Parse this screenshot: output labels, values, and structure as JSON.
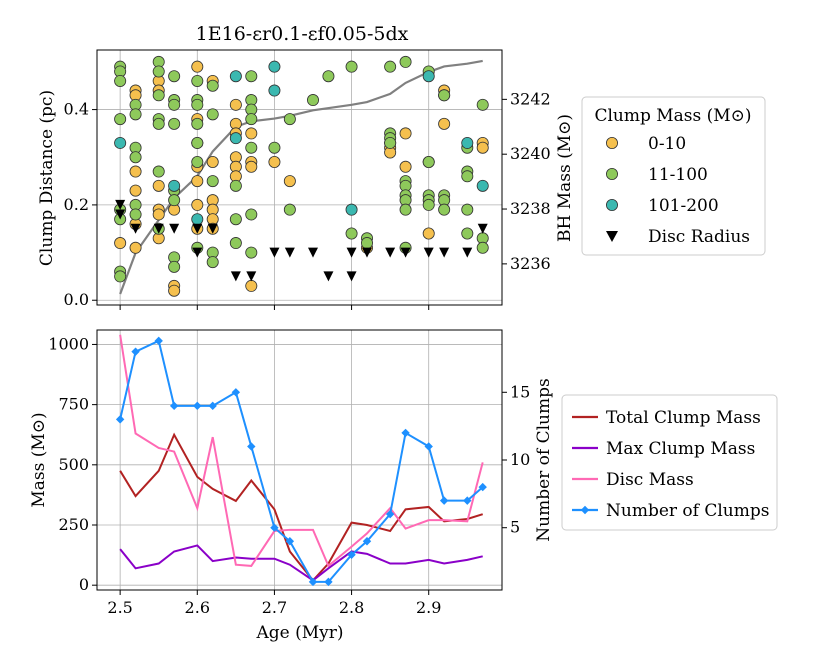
{
  "chart_data": [
    {
      "panel": "top",
      "type": "scatter",
      "title": "1E16-εr0.1-εf0.05-5dx",
      "xlabel": "",
      "ylabel": "Clump Distance (pc)",
      "y2label": "BH Mass (M⊙)",
      "xlim": [
        2.47,
        2.995
      ],
      "ylim": [
        -0.01,
        0.525
      ],
      "y2lim": [
        3234.5,
        3243.8
      ],
      "xticks": [
        2.5,
        2.6,
        2.7,
        2.8,
        2.9
      ],
      "yticks": [
        0.0,
        0.2,
        0.4
      ],
      "ytick_labels": [
        "0.0",
        "0.2",
        "0.4"
      ],
      "y2ticks": [
        3236,
        3238,
        3240,
        3242
      ],
      "y2tick_labels": [
        "3236",
        "3238",
        "3240",
        "3242"
      ],
      "legend": {
        "title": "Clump Mass (M⊙)",
        "position": "right",
        "entries": [
          {
            "label": "0-10",
            "color": "#f5c04e",
            "marker": "circle"
          },
          {
            "label": "11-100",
            "color": "#8ec95b",
            "marker": "circle"
          },
          {
            "label": "101-200",
            "color": "#3bb8b0",
            "marker": "circle"
          },
          {
            "label": "Disc Radius",
            "color": "#000000",
            "marker": "triangle-down"
          }
        ]
      },
      "series": [
        {
          "name": "0-10",
          "color": "#f5c04e",
          "points": [
            [
              2.5,
              0.12
            ],
            [
              2.52,
              0.44
            ],
            [
              2.52,
              0.43
            ],
            [
              2.52,
              0.27
            ],
            [
              2.52,
              0.23
            ],
            [
              2.52,
              0.16
            ],
            [
              2.52,
              0.11
            ],
            [
              2.55,
              0.46
            ],
            [
              2.55,
              0.44
            ],
            [
              2.55,
              0.24
            ],
            [
              2.55,
              0.19
            ],
            [
              2.55,
              0.18
            ],
            [
              2.55,
              0.13
            ],
            [
              2.57,
              0.03
            ],
            [
              2.57,
              0.02
            ],
            [
              2.57,
              0.19
            ],
            [
              2.6,
              0.49
            ],
            [
              2.6,
              0.38
            ],
            [
              2.6,
              0.33
            ],
            [
              2.6,
              0.28
            ],
            [
              2.6,
              0.25
            ],
            [
              2.6,
              0.2
            ],
            [
              2.6,
              0.15
            ],
            [
              2.62,
              0.46
            ],
            [
              2.62,
              0.29
            ],
            [
              2.62,
              0.21
            ],
            [
              2.62,
              0.19
            ],
            [
              2.62,
              0.17
            ],
            [
              2.62,
              0.15
            ],
            [
              2.65,
              0.41
            ],
            [
              2.65,
              0.37
            ],
            [
              2.65,
              0.35
            ],
            [
              2.65,
              0.3
            ],
            [
              2.65,
              0.28
            ],
            [
              2.65,
              0.26
            ],
            [
              2.67,
              0.35
            ],
            [
              2.67,
              0.03
            ],
            [
              2.67,
              0.29
            ],
            [
              2.67,
              0.28
            ],
            [
              2.7,
              0.29
            ],
            [
              2.72,
              0.25
            ],
            [
              2.82,
              0.11
            ],
            [
              2.85,
              0.33
            ],
            [
              2.85,
              0.32
            ],
            [
              2.85,
              0.31
            ],
            [
              2.87,
              0.28
            ],
            [
              2.87,
              0.35
            ],
            [
              2.9,
              0.14
            ],
            [
              2.9,
              0.29
            ],
            [
              2.92,
              0.44
            ],
            [
              2.92,
              0.43
            ],
            [
              2.92,
              0.37
            ],
            [
              2.97,
              0.33
            ],
            [
              2.97,
              0.32
            ]
          ]
        },
        {
          "name": "11-100",
          "color": "#8ec95b",
          "points": [
            [
              2.5,
              0.49
            ],
            [
              2.5,
              0.48
            ],
            [
              2.5,
              0.46
            ],
            [
              2.5,
              0.38
            ],
            [
              2.5,
              0.19
            ],
            [
              2.5,
              0.17
            ],
            [
              2.5,
              0.06
            ],
            [
              2.5,
              0.05
            ],
            [
              2.52,
              0.41
            ],
            [
              2.52,
              0.39
            ],
            [
              2.52,
              0.32
            ],
            [
              2.52,
              0.3
            ],
            [
              2.52,
              0.2
            ],
            [
              2.52,
              0.18
            ],
            [
              2.55,
              0.5
            ],
            [
              2.55,
              0.48
            ],
            [
              2.55,
              0.43
            ],
            [
              2.55,
              0.38
            ],
            [
              2.55,
              0.37
            ],
            [
              2.55,
              0.27
            ],
            [
              2.55,
              0.15
            ],
            [
              2.57,
              0.47
            ],
            [
              2.57,
              0.42
            ],
            [
              2.57,
              0.41
            ],
            [
              2.57,
              0.37
            ],
            [
              2.57,
              0.23
            ],
            [
              2.57,
              0.21
            ],
            [
              2.57,
              0.09
            ],
            [
              2.57,
              0.07
            ],
            [
              2.6,
              0.46
            ],
            [
              2.6,
              0.42
            ],
            [
              2.6,
              0.41
            ],
            [
              2.6,
              0.37
            ],
            [
              2.6,
              0.33
            ],
            [
              2.6,
              0.29
            ],
            [
              2.6,
              0.11
            ],
            [
              2.62,
              0.45
            ],
            [
              2.62,
              0.39
            ],
            [
              2.62,
              0.25
            ],
            [
              2.62,
              0.1
            ],
            [
              2.62,
              0.08
            ],
            [
              2.65,
              0.24
            ],
            [
              2.65,
              0.17
            ],
            [
              2.65,
              0.12
            ],
            [
              2.67,
              0.47
            ],
            [
              2.67,
              0.42
            ],
            [
              2.67,
              0.4
            ],
            [
              2.67,
              0.38
            ],
            [
              2.67,
              0.32
            ],
            [
              2.67,
              0.18
            ],
            [
              2.67,
              0.1
            ],
            [
              2.7,
              0.32
            ],
            [
              2.72,
              0.38
            ],
            [
              2.72,
              0.19
            ],
            [
              2.75,
              0.42
            ],
            [
              2.77,
              0.47
            ],
            [
              2.8,
              0.49
            ],
            [
              2.8,
              0.14
            ],
            [
              2.82,
              0.13
            ],
            [
              2.82,
              0.12
            ],
            [
              2.85,
              0.49
            ],
            [
              2.85,
              0.35
            ],
            [
              2.85,
              0.34
            ],
            [
              2.85,
              0.33
            ],
            [
              2.87,
              0.5
            ],
            [
              2.87,
              0.25
            ],
            [
              2.87,
              0.24
            ],
            [
              2.87,
              0.22
            ],
            [
              2.87,
              0.21
            ],
            [
              2.87,
              0.19
            ],
            [
              2.87,
              0.11
            ],
            [
              2.9,
              0.48
            ],
            [
              2.9,
              0.29
            ],
            [
              2.9,
              0.22
            ],
            [
              2.9,
              0.21
            ],
            [
              2.9,
              0.2
            ],
            [
              2.92,
              0.43
            ],
            [
              2.92,
              0.22
            ],
            [
              2.92,
              0.21
            ],
            [
              2.92,
              0.19
            ],
            [
              2.95,
              0.32
            ],
            [
              2.95,
              0.27
            ],
            [
              2.95,
              0.26
            ],
            [
              2.95,
              0.19
            ],
            [
              2.95,
              0.14
            ],
            [
              2.97,
              0.41
            ],
            [
              2.97,
              0.13
            ],
            [
              2.97,
              0.11
            ]
          ]
        },
        {
          "name": "101-200",
          "color": "#3bb8b0",
          "points": [
            [
              2.5,
              0.33
            ],
            [
              2.57,
              0.24
            ],
            [
              2.6,
              0.17
            ],
            [
              2.65,
              0.47
            ],
            [
              2.65,
              0.34
            ],
            [
              2.7,
              0.49
            ],
            [
              2.7,
              0.44
            ],
            [
              2.8,
              0.19
            ],
            [
              2.9,
              0.47
            ],
            [
              2.95,
              0.33
            ],
            [
              2.97,
              0.24
            ]
          ]
        },
        {
          "name": "Disc Radius",
          "color": "#000000",
          "marker": "triangle-down",
          "points": [
            [
              2.5,
              0.2
            ],
            [
              2.5,
              0.18
            ],
            [
              2.52,
              0.15
            ],
            [
              2.55,
              0.15
            ],
            [
              2.57,
              0.15
            ],
            [
              2.6,
              0.1
            ],
            [
              2.6,
              0.15
            ],
            [
              2.62,
              0.15
            ],
            [
              2.65,
              0.05
            ],
            [
              2.67,
              0.05
            ],
            [
              2.7,
              0.1
            ],
            [
              2.72,
              0.1
            ],
            [
              2.75,
              0.1
            ],
            [
              2.77,
              0.05
            ],
            [
              2.8,
              0.05
            ],
            [
              2.8,
              0.1
            ],
            [
              2.82,
              0.1
            ],
            [
              2.85,
              0.1
            ],
            [
              2.87,
              0.1
            ],
            [
              2.9,
              0.1
            ],
            [
              2.92,
              0.1
            ],
            [
              2.95,
              0.1
            ],
            [
              2.97,
              0.15
            ]
          ]
        },
        {
          "name": "BH Mass",
          "axis": "right",
          "color": "#808080",
          "type": "line",
          "points": [
            [
              2.5,
              3234.9
            ],
            [
              2.52,
              3236.4
            ],
            [
              2.55,
              3237.6
            ],
            [
              2.57,
              3238.4
            ],
            [
              2.6,
              3239.2
            ],
            [
              2.62,
              3240.1
            ],
            [
              2.65,
              3241.0
            ],
            [
              2.67,
              3241.2
            ],
            [
              2.7,
              3241.3
            ],
            [
              2.72,
              3241.4
            ],
            [
              2.75,
              3241.6
            ],
            [
              2.8,
              3241.8
            ],
            [
              2.82,
              3241.9
            ],
            [
              2.85,
              3242.2
            ],
            [
              2.87,
              3242.6
            ],
            [
              2.9,
              3243.0
            ],
            [
              2.92,
              3243.2
            ],
            [
              2.95,
              3243.3
            ],
            [
              2.97,
              3243.4
            ]
          ]
        }
      ]
    },
    {
      "panel": "bottom",
      "type": "line",
      "title": "",
      "xlabel": "Age (Myr)",
      "ylabel": "Mass (M⊙)",
      "y2label": "Number of Clumps",
      "xlim": [
        2.47,
        2.995
      ],
      "ylim": [
        -20,
        1060
      ],
      "y2lim": [
        0.4,
        19.6
      ],
      "xticks": [
        2.5,
        2.6,
        2.7,
        2.8,
        2.9
      ],
      "xtick_labels": [
        "2.5",
        "2.6",
        "2.7",
        "2.8",
        "2.9"
      ],
      "yticks": [
        0,
        250,
        500,
        750,
        1000
      ],
      "ytick_labels": [
        "0",
        "250",
        "500",
        "750",
        "1000"
      ],
      "y2ticks": [
        5,
        10,
        15
      ],
      "y2tick_labels": [
        "5",
        "10",
        "15"
      ],
      "legend": {
        "position": "right",
        "entries": [
          {
            "label": "Total Clump Mass",
            "color": "#b22222",
            "marker": "line"
          },
          {
            "label": "Max Clump Mass",
            "color": "#8a00c8",
            "marker": "line"
          },
          {
            "label": "Disc Mass",
            "color": "#ff69b4",
            "marker": "line"
          },
          {
            "label": "Number of Clumps",
            "color": "#1e90ff",
            "marker": "line-diamond"
          }
        ]
      },
      "x": [
        2.5,
        2.52,
        2.55,
        2.57,
        2.6,
        2.62,
        2.65,
        2.67,
        2.7,
        2.72,
        2.75,
        2.77,
        2.8,
        2.82,
        2.85,
        2.87,
        2.9,
        2.92,
        2.95,
        2.97
      ],
      "series": [
        {
          "name": "Total Clump Mass",
          "axis": "left",
          "color": "#b22222",
          "values": [
            475,
            370,
            475,
            625,
            450,
            400,
            350,
            435,
            315,
            140,
            20,
            90,
            260,
            250,
            225,
            315,
            325,
            265,
            275,
            295
          ]
        },
        {
          "name": "Max Clump Mass",
          "axis": "left",
          "color": "#8a00c8",
          "values": [
            150,
            70,
            90,
            140,
            165,
            100,
            115,
            110,
            110,
            85,
            20,
            70,
            140,
            130,
            90,
            90,
            105,
            90,
            105,
            120
          ]
        },
        {
          "name": "Disc Mass",
          "axis": "left",
          "color": "#ff69b4",
          "values": [
            1040,
            630,
            570,
            555,
            320,
            615,
            85,
            80,
            225,
            230,
            230,
            80,
            160,
            215,
            320,
            235,
            270,
            270,
            265,
            510
          ]
        },
        {
          "name": "Number of Clumps",
          "axis": "right",
          "color": "#1e90ff",
          "marker": "diamond",
          "values": [
            13,
            18,
            18.8,
            14,
            14,
            14,
            15,
            11,
            5,
            4,
            1,
            1,
            3,
            4,
            6,
            12,
            11,
            7,
            7,
            8
          ]
        }
      ]
    }
  ]
}
